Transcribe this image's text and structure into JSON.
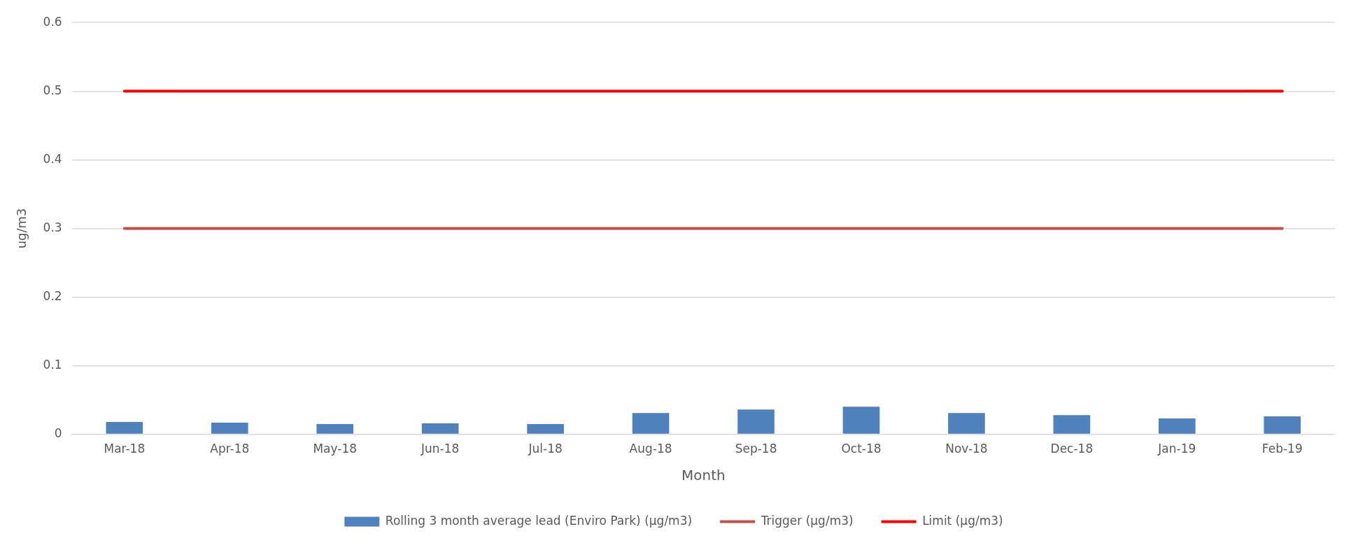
{
  "chart_data": {
    "type": "bar",
    "xlabel": "Month",
    "ylabel": "ug/m3",
    "categories": [
      "Mar-18",
      "Apr-18",
      "May-18",
      "Jun-18",
      "Jul-18",
      "Aug-18",
      "Sep-18",
      "Oct-18",
      "Nov-18",
      "Dec-18",
      "Jan-19",
      "Feb-19"
    ],
    "series": [
      {
        "name": "Rolling 3 month average lead (Enviro Park) (µg/m3)",
        "color": "#4f81bd",
        "values": [
          0.018,
          0.017,
          0.015,
          0.016,
          0.015,
          0.031,
          0.036,
          0.04,
          0.031,
          0.028,
          0.023,
          0.026
        ]
      },
      {
        "type": "line",
        "name": "Trigger (µg/m3)",
        "color": "#c0504d",
        "values": [
          0.3,
          0.3,
          0.3,
          0.3,
          0.3,
          0.3,
          0.3,
          0.3,
          0.3,
          0.3,
          0.3,
          0.3
        ]
      },
      {
        "type": "line",
        "name": "Limit (µg/m3)",
        "color": "#ff0000",
        "values": [
          0.5,
          0.5,
          0.5,
          0.5,
          0.5,
          0.5,
          0.5,
          0.5,
          0.5,
          0.5,
          0.5,
          0.5
        ]
      }
    ],
    "ylim": [
      0,
      0.6
    ],
    "yticks": [
      0,
      0.1,
      0.2,
      0.3,
      0.4,
      0.5,
      0.6
    ],
    "grid": "y",
    "legend": "bottom",
    "marker": "none"
  }
}
